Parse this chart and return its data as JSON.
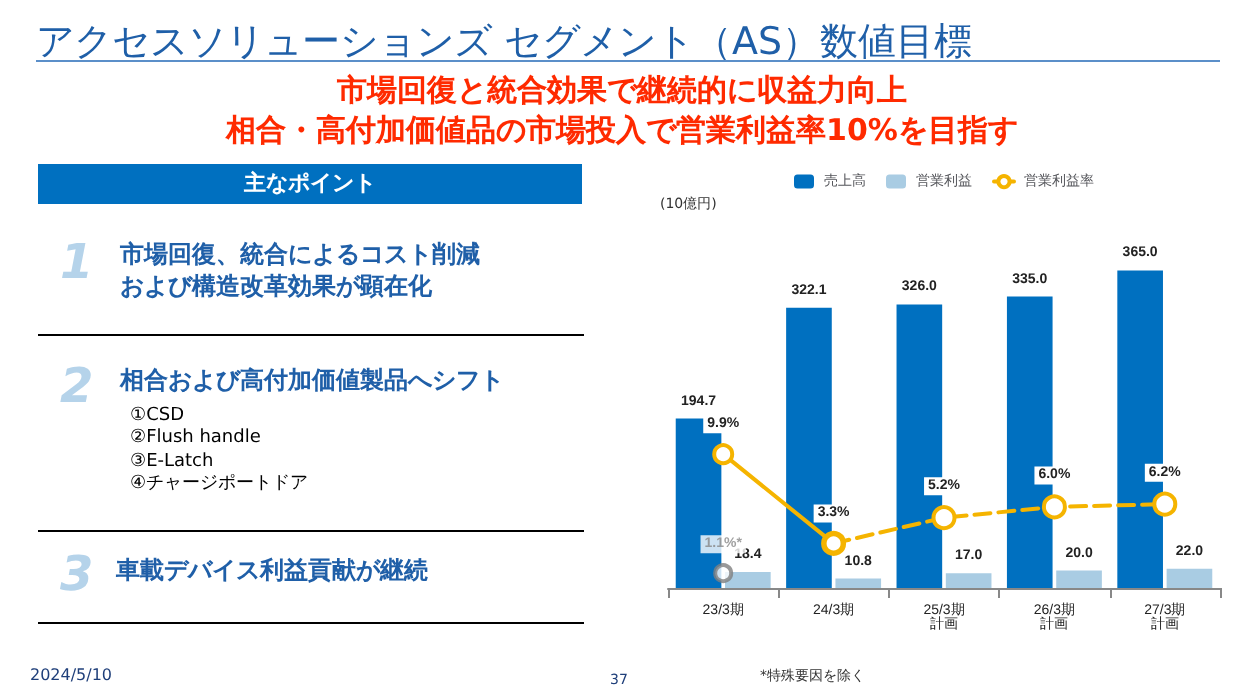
{
  "chart_data": {
    "type": "bar",
    "title": "アクセスソリューションズ セグメント（AS）数値目標",
    "subtitle": "市場回復と統合効果で継続的に収益力向上",
    "categories": [
      "23/3期",
      "24/3期",
      "25/3期計画",
      "26/3期計画",
      "27/3期計画"
    ],
    "series": [
      {
        "name": "売上高",
        "color": "#0070c0",
        "values": [
          194.7,
          322.1,
          326.0,
          335.0,
          365.0
        ],
        "value_labels": [
          "194.7",
          "322.1",
          "326.0",
          "335.0",
          "365.0"
        ]
      },
      {
        "name": "営業利益",
        "color": "#a9cce3",
        "values": [
          18.4,
          10.8,
          17.0,
          20.0,
          22.0
        ],
        "value_labels": [
          "18.4",
          "10.8",
          "17.0",
          "20.0",
          "22.0"
        ]
      },
      {
        "name": "営業利益率",
        "type": "line",
        "axis": "y2",
        "color": "#f5b400",
        "line_style": "solid",
        "values": [
          9.9,
          3.3,
          null,
          null,
          null
        ],
        "value_labels": [
          "9.9%",
          "3.3%",
          null,
          null,
          null
        ]
      },
      {
        "type": "line",
        "axis": "y2",
        "color": "#f5b400",
        "line_style": "dashed",
        "values": [
          null,
          3.3,
          5.2,
          6.0,
          6.2
        ],
        "value_labels": [
          null,
          null,
          "5.2%",
          "6.0%",
          "6.2%"
        ]
      },
      {
        "type": "scatter",
        "axis": "y2",
        "color": "#808080",
        "values": [
          1.1,
          null,
          null,
          null,
          null
        ],
        "value_labels": [
          "1.1%*",
          null,
          null,
          null,
          null
        ]
      }
    ],
    "marker": "circle",
    "legend": "top",
    "tick_labels": "x",
    "grid": false,
    "annotations": [
      "相合・高付加価値品の市場投入で営業利益率10%を目指す",
      "主なポイント",
      "1",
      "市場回復、統合によるコスト削減",
      "および構造改革効果が顕在化",
      "2",
      "相合および高付加価値製品へシフト",
      "①CSD\n②Flush handle\n③E-Latch\n④チャージポートドア",
      "3",
      "車載デバイス利益貢献が継続",
      "2024/5/10",
      "37",
      "(10億円)",
      "*特殊要因を除く"
    ]
  }
}
